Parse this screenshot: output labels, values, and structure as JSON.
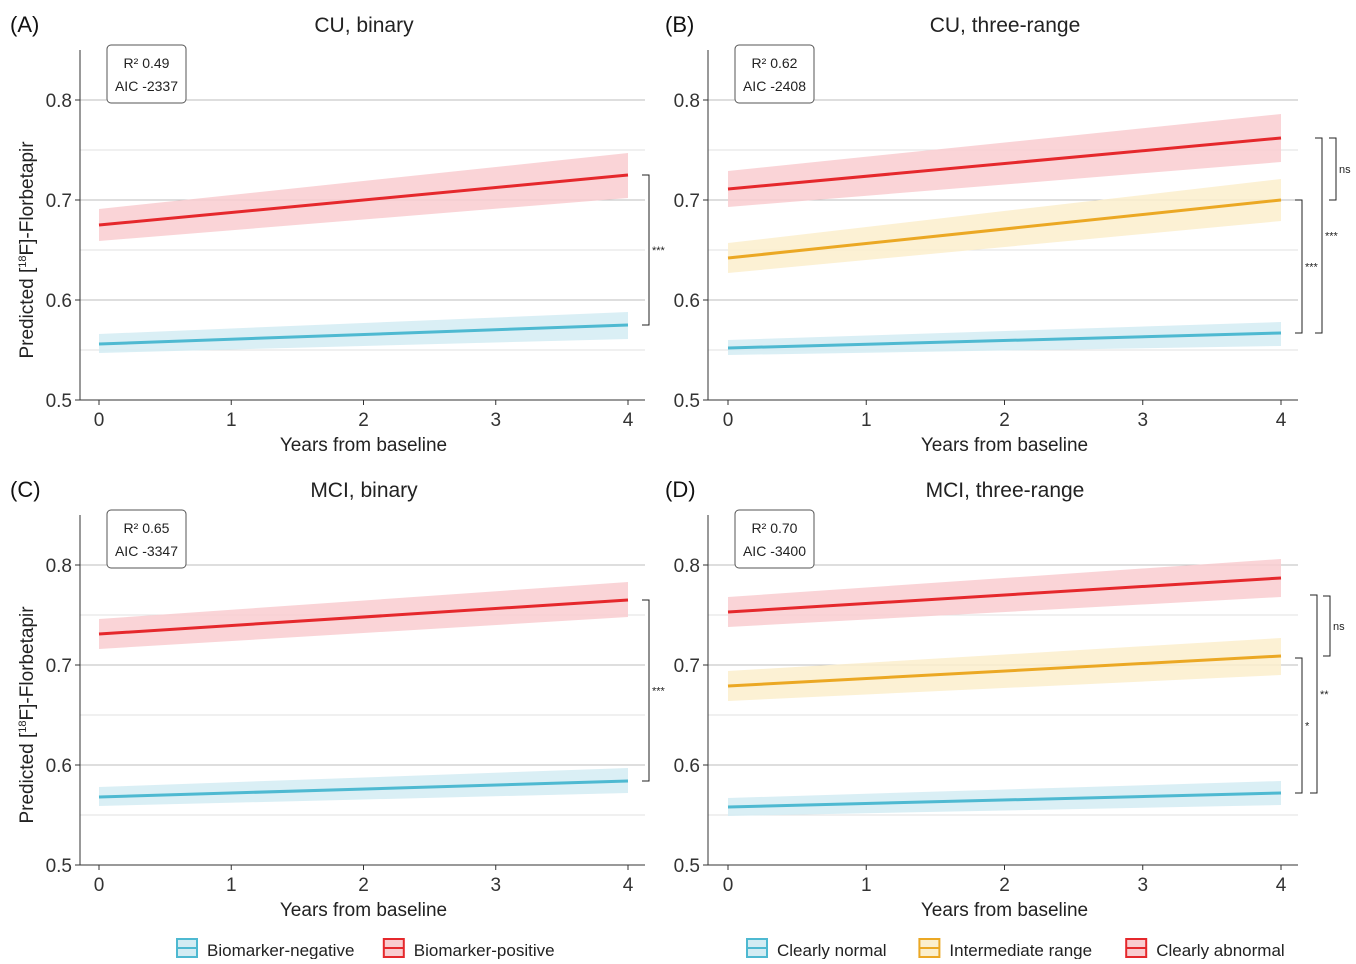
{
  "colors": {
    "negative": "#4eb9d1",
    "negative_fill": "#d3ecf3",
    "intermediate": "#eba824",
    "intermediate_fill": "#fbefcd",
    "positive": "#e5282c",
    "positive_fill": "#f9cdd0",
    "gridline": "#c8c8c8",
    "axis": "#333333"
  },
  "legends": {
    "binary": [
      "Biomarker-negative",
      "Biomarker-positive"
    ],
    "three_range": [
      "Clearly normal",
      "Intermediate range",
      "Clearly abnormal"
    ]
  },
  "chart_data": [
    {
      "type": "line",
      "panel_label": "(A)",
      "title": "CU, binary",
      "xlabel": "Years from baseline",
      "ylabel": "Predicted [18F]-Florbetapir",
      "xlim": [
        0,
        4
      ],
      "ylim": [
        0.5,
        0.85
      ],
      "xticks": [
        "0",
        "1",
        "2",
        "3",
        "4"
      ],
      "yticks": [
        "0.5",
        "0.6",
        "0.7",
        "0.8"
      ],
      "grid": true,
      "fit_stats": {
        "r2_label": "R² 0.49",
        "aic_label": "AIC -2337"
      },
      "series": [
        {
          "name": "Biomarker-negative",
          "color": "negative",
          "x": [
            0,
            4
          ],
          "y": [
            0.556,
            0.575
          ],
          "lower": [
            0.547,
            0.561
          ],
          "upper": [
            0.566,
            0.588
          ]
        },
        {
          "name": "Biomarker-positive",
          "color": "positive",
          "x": [
            0,
            4
          ],
          "y": [
            0.675,
            0.725
          ],
          "lower": [
            0.659,
            0.702
          ],
          "upper": [
            0.691,
            0.747
          ]
        }
      ],
      "significance": [
        {
          "label": "***",
          "from": 0.575,
          "to": 0.725
        }
      ]
    },
    {
      "type": "line",
      "panel_label": "(B)",
      "title": "CU, three-range",
      "xlabel": "Years from baseline",
      "ylabel": "",
      "xlim": [
        0,
        4
      ],
      "ylim": [
        0.5,
        0.85
      ],
      "xticks": [
        "0",
        "1",
        "2",
        "3",
        "4"
      ],
      "yticks": [
        "0.5",
        "0.6",
        "0.7",
        "0.8"
      ],
      "grid": true,
      "fit_stats": {
        "r2_label": "R² 0.62",
        "aic_label": "AIC -2408"
      },
      "series": [
        {
          "name": "Clearly normal",
          "color": "negative",
          "x": [
            0,
            4
          ],
          "y": [
            0.552,
            0.567
          ],
          "lower": [
            0.545,
            0.554
          ],
          "upper": [
            0.56,
            0.578
          ]
        },
        {
          "name": "Intermediate range",
          "color": "intermediate",
          "x": [
            0,
            4
          ],
          "y": [
            0.642,
            0.7
          ],
          "lower": [
            0.627,
            0.679
          ],
          "upper": [
            0.657,
            0.721
          ]
        },
        {
          "name": "Clearly abnormal",
          "color": "positive",
          "x": [
            0,
            4
          ],
          "y": [
            0.711,
            0.762
          ],
          "lower": [
            0.693,
            0.738
          ],
          "upper": [
            0.729,
            0.786
          ]
        }
      ],
      "significance": [
        {
          "label": "ns",
          "from": 0.7,
          "to": 0.762
        },
        {
          "label": "***",
          "from": 0.567,
          "to": 0.7
        },
        {
          "label": "***",
          "from": 0.567,
          "to": 0.762
        }
      ]
    },
    {
      "type": "line",
      "panel_label": "(C)",
      "title": "MCI, binary",
      "xlabel": "Years from baseline",
      "ylabel": "Predicted [18F]-Florbetapir",
      "xlim": [
        0,
        4
      ],
      "ylim": [
        0.5,
        0.85
      ],
      "xticks": [
        "0",
        "1",
        "2",
        "3",
        "4"
      ],
      "yticks": [
        "0.5",
        "0.6",
        "0.7",
        "0.8"
      ],
      "grid": true,
      "fit_stats": {
        "r2_label": "R² 0.65",
        "aic_label": "AIC -3347"
      },
      "series": [
        {
          "name": "Biomarker-negative",
          "color": "negative",
          "x": [
            0,
            4
          ],
          "y": [
            0.568,
            0.584
          ],
          "lower": [
            0.559,
            0.572
          ],
          "upper": [
            0.578,
            0.597
          ]
        },
        {
          "name": "Biomarker-positive",
          "color": "positive",
          "x": [
            0,
            4
          ],
          "y": [
            0.731,
            0.765
          ],
          "lower": [
            0.716,
            0.748
          ],
          "upper": [
            0.746,
            0.783
          ]
        }
      ],
      "significance": [
        {
          "label": "***",
          "from": 0.584,
          "to": 0.765
        }
      ]
    },
    {
      "type": "line",
      "panel_label": "(D)",
      "title": "MCI, three-range",
      "xlabel": "Years from baseline",
      "ylabel": "",
      "xlim": [
        0,
        4
      ],
      "ylim": [
        0.5,
        0.85
      ],
      "xticks": [
        "0",
        "1",
        "2",
        "3",
        "4"
      ],
      "yticks": [
        "0.5",
        "0.6",
        "0.7",
        "0.8"
      ],
      "grid": true,
      "fit_stats": {
        "r2_label": "R² 0.70",
        "aic_label": "AIC -3400"
      },
      "series": [
        {
          "name": "Clearly normal",
          "color": "negative",
          "x": [
            0,
            4
          ],
          "y": [
            0.558,
            0.572
          ],
          "lower": [
            0.549,
            0.56
          ],
          "upper": [
            0.567,
            0.584
          ]
        },
        {
          "name": "Intermediate range",
          "color": "intermediate",
          "x": [
            0,
            4
          ],
          "y": [
            0.679,
            0.709
          ],
          "lower": [
            0.664,
            0.69
          ],
          "upper": [
            0.694,
            0.727
          ]
        },
        {
          "name": "Clearly abnormal",
          "color": "positive",
          "x": [
            0,
            4
          ],
          "y": [
            0.753,
            0.787
          ],
          "lower": [
            0.738,
            0.768
          ],
          "upper": [
            0.768,
            0.806
          ]
        }
      ],
      "significance": [
        {
          "label": "ns",
          "from": 0.709,
          "to": 0.769
        },
        {
          "label": "*",
          "from": 0.572,
          "to": 0.707
        },
        {
          "label": "**",
          "from": 0.572,
          "to": 0.77
        }
      ]
    }
  ]
}
